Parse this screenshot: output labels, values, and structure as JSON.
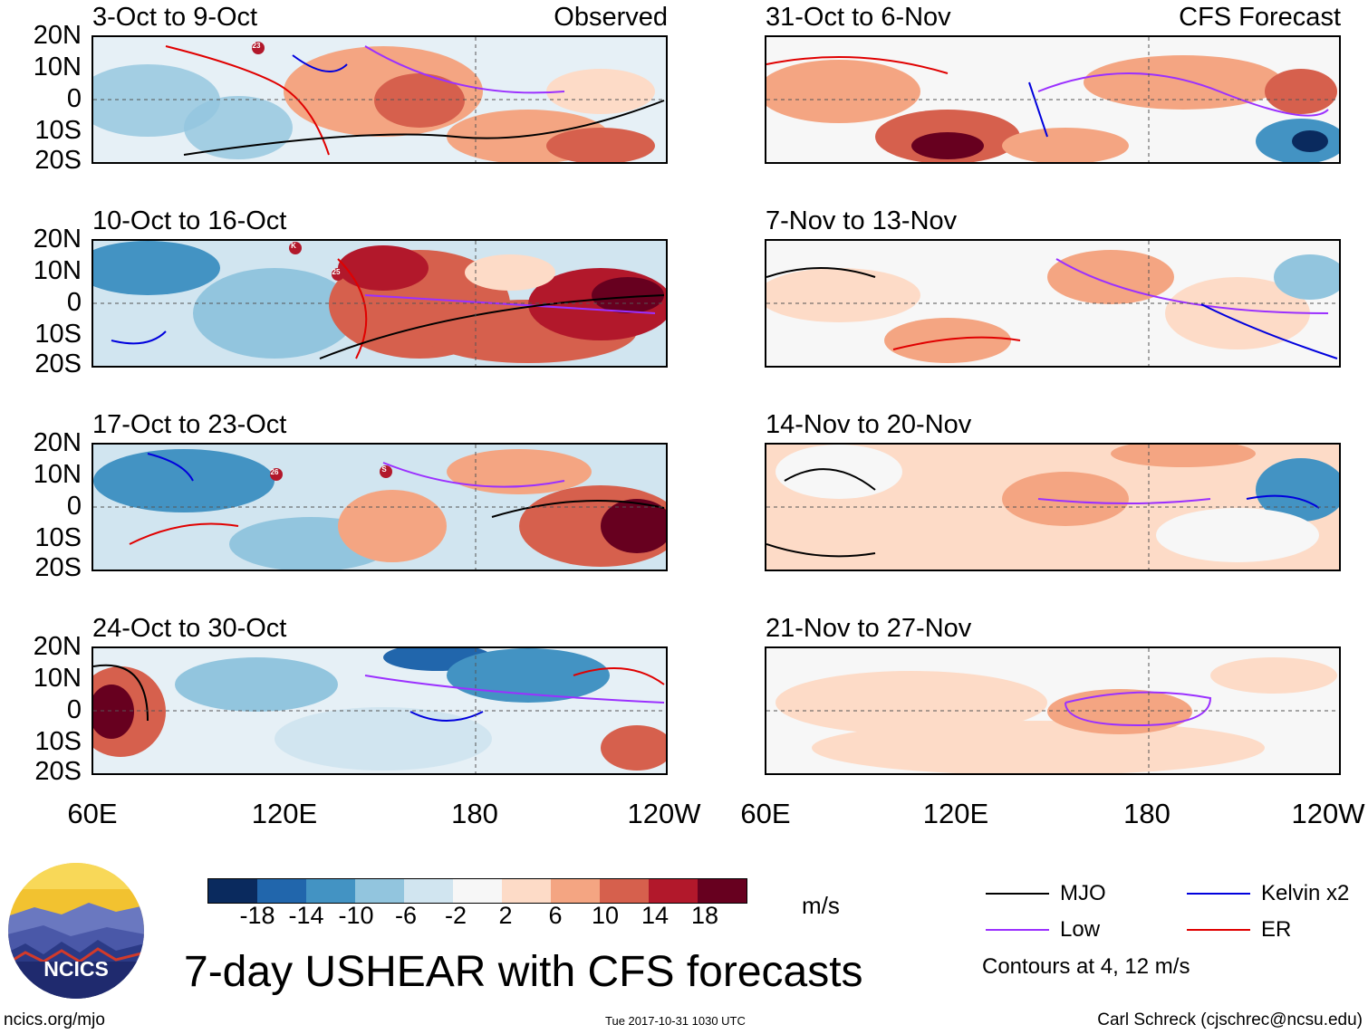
{
  "panels": [
    {
      "title": "3-Oct to 9-Oct",
      "tag": "Observed"
    },
    {
      "title": "31-Oct to 6-Nov",
      "tag": "CFS Forecast"
    },
    {
      "title": "10-Oct to 16-Oct",
      "tag": ""
    },
    {
      "title": "7-Nov to 13-Nov",
      "tag": ""
    },
    {
      "title": "17-Oct to 23-Oct",
      "tag": ""
    },
    {
      "title": "14-Nov to 20-Nov",
      "tag": ""
    },
    {
      "title": "24-Oct to 30-Oct",
      "tag": ""
    },
    {
      "title": "21-Nov to 27-Nov",
      "tag": ""
    }
  ],
  "latitude_labels": [
    "20N",
    "10N",
    "0",
    "10S",
    "20S"
  ],
  "longitude_labels": [
    "60E",
    "120E",
    "180",
    "120W"
  ],
  "colorbar": {
    "colors": [
      "#0a2a5e",
      "#2166ac",
      "#4393c3",
      "#92c5de",
      "#d1e5f0",
      "#f7f7f7",
      "#fddbc7",
      "#f4a582",
      "#d6604d",
      "#b2182b",
      "#67001f"
    ],
    "ticks": [
      "-18",
      "-14",
      "-10",
      "-6",
      "-2",
      "2",
      "6",
      "10",
      "14",
      "18"
    ],
    "units": "m/s"
  },
  "legend": {
    "mjo": "MJO",
    "kelvin": "Kelvin x2",
    "low": "Low",
    "er": "ER",
    "mjo_color": "#000000",
    "kelvin_color": "#0000dd",
    "low_color": "#9b30ff",
    "er_color": "#e00000",
    "note": "Contours at 4, 12 m/s"
  },
  "title": "7-day USHEAR with CFS forecasts",
  "logo_text": "NCICS",
  "footer": {
    "url": "ncics.org/mjo",
    "timestamp": "Tue 2017-10-31 1030 UTC",
    "author": "Carl Schreck (cjschrec@ncsu.edu)"
  },
  "storm_markers": [
    "23",
    "K",
    "25",
    "26",
    "S"
  ]
}
